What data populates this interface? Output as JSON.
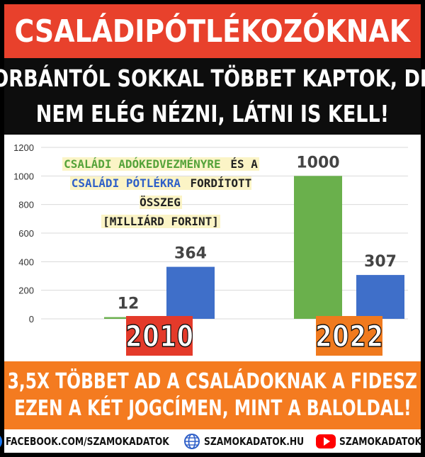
{
  "title": "CSALÁDIPÓTLÉKOZÓKNAK",
  "subtitle_lines": [
    "ORBÁNTÓL SOKKAL TÖBBET KAPTOK, DE",
    "NEM ELÉG NÉZNI, LÁTNI IS KELL!"
  ],
  "callout": {
    "part1_green": "CSALÁDI ADÓKEDVEZMÉNYRE",
    "part1_rest": " ÉS A",
    "part2_blue": "CSALÁDI PÓTLÉKRA",
    "part2_rest": " FORDÍTOTT ÖSSZEG",
    "part3": "[MILLIÁRD FORINT]"
  },
  "chart_data": {
    "type": "bar",
    "categories": [
      "2010",
      "2022"
    ],
    "series": [
      {
        "name": "CSALÁDI ADÓKEDVEZMÉNYRE",
        "color": "#6ab04c",
        "values": [
          12,
          1000
        ]
      },
      {
        "name": "CSALÁDI PÓTLÉKRA",
        "color": "#3f6fc9",
        "values": [
          364,
          307
        ]
      }
    ],
    "data_labels": [
      [
        "12",
        "1000"
      ],
      [
        "364",
        "307"
      ]
    ],
    "ylim": [
      0,
      1200
    ],
    "yticks": [
      "0",
      "200",
      "400",
      "600",
      "800",
      "1000",
      "1200"
    ],
    "grid": true,
    "xlabel": "",
    "ylabel": ""
  },
  "bottom_lines": [
    "3,5X TÖBBET AD A CSALÁDOKNAK A FIDESZ",
    "EZEN A KÉT JOGCÍMEN, MINT A BALOLDAL!"
  ],
  "footer": {
    "facebook": "FACEBOOK.COM/SZAMOKADATOK",
    "website": "SZAMOKADATOK.HU",
    "youtube": "SZAMOKADATOK",
    "fb_icon": "facebook-icon",
    "web_icon": "globe-icon",
    "yt_icon": "youtube-icon"
  }
}
